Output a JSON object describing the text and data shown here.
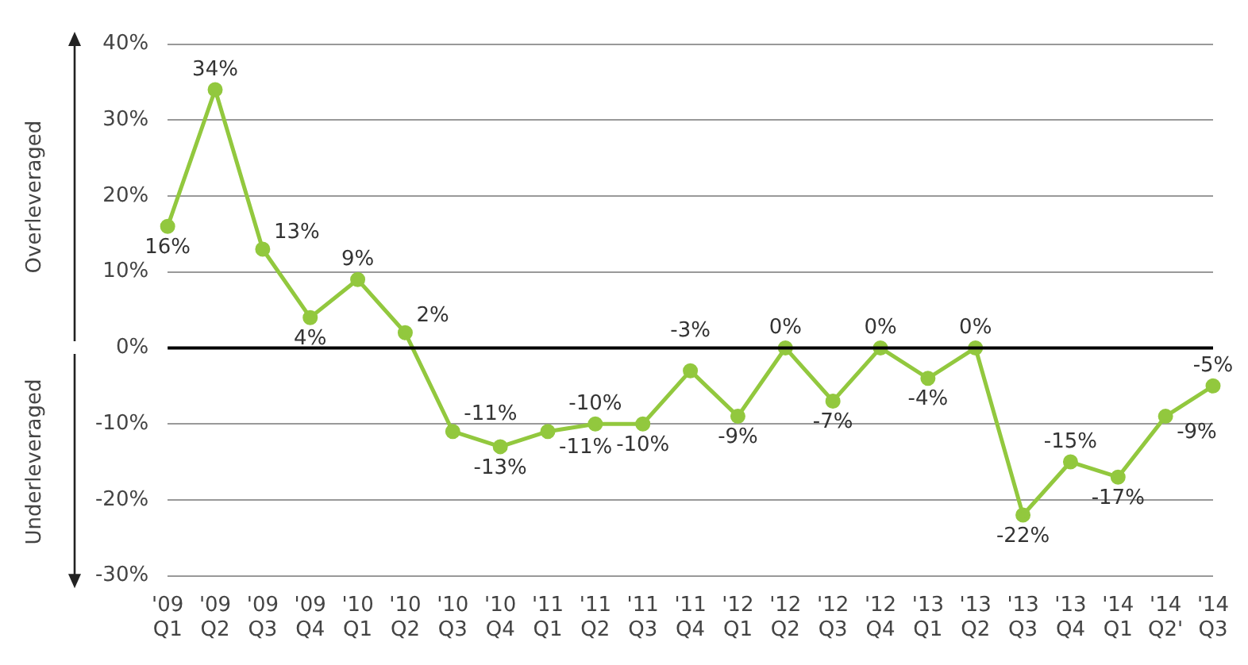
{
  "chart_data": {
    "type": "line",
    "categories": [
      "'09 Q1",
      "'09 Q2",
      "'09 Q3",
      "'09 Q4",
      "'10 Q1",
      "'10 Q2",
      "'10 Q3",
      "'10 Q4",
      "'11 Q1",
      "'11 Q2",
      "'11 Q3",
      "'11 Q4",
      "'12 Q1",
      "'12 Q2",
      "'12 Q3",
      "'12 Q4",
      "'13 Q1",
      "'13 Q2",
      "'13 Q3",
      "'13 Q4",
      "'14 Q1",
      "'14 Q2'",
      "'14 Q3"
    ],
    "series": [
      {
        "color": "#92c83e",
        "values": [
          16,
          34,
          13,
          4,
          9,
          2,
          -11,
          -13,
          -11,
          -10,
          -10,
          -3,
          -9,
          0,
          -7,
          0,
          -4,
          0,
          -22,
          -15,
          -17,
          -9,
          -5
        ]
      }
    ],
    "value_labels": [
      "16%",
      "34%",
      "13%",
      "4%",
      "9%",
      "2%",
      "-11%",
      "-13%",
      "-11%",
      "-10%",
      "-10%",
      "-3%",
      "-9%",
      "0%",
      "-7%",
      "0%",
      "-4%",
      "0%",
      "-22%",
      "-15%",
      "-17%",
      "-9%",
      "-5%"
    ],
    "ylim": [
      -30,
      40
    ],
    "yticks": [
      {
        "value": -30,
        "label": "-30%"
      },
      {
        "value": -20,
        "label": "-20%"
      },
      {
        "value": -10,
        "label": "-10%"
      },
      {
        "value": 0,
        "label": "0%"
      },
      {
        "value": 10,
        "label": "10%"
      },
      {
        "value": 20,
        "label": "20%"
      },
      {
        "value": 30,
        "label": "30%"
      },
      {
        "value": 40,
        "label": "40%"
      }
    ],
    "grid": "y",
    "marker": "circle",
    "line_style": "solid",
    "ref_lines": [
      {
        "axis": "y",
        "value": 0,
        "color": "#000000"
      }
    ],
    "annotations": [
      "Overleveraged",
      "Underleveraged"
    ]
  }
}
